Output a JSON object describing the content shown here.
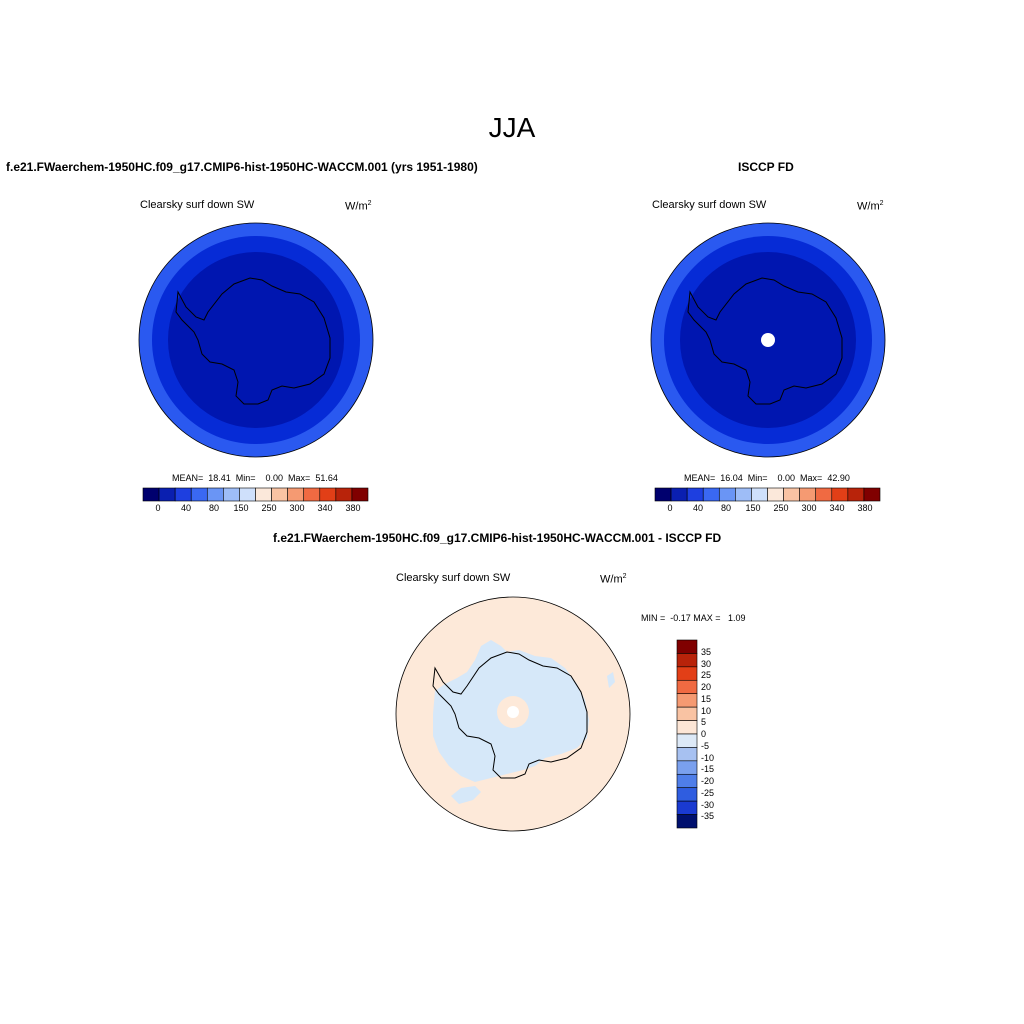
{
  "season": "JJA",
  "panel_left": {
    "title": "f.e21.FWaerchem-1950HC.f09_g17.CMIP6-hist-1950HC-WACCM.001 (yrs 1951-1980)",
    "variable": "Clearsky surf down SW",
    "units_base": "W/m",
    "units_exp": "2",
    "stats": "MEAN=  18.41  Min=    0.00  Max=  51.64",
    "colorbar_ticks": [
      "0",
      "40",
      "80",
      "150",
      "250",
      "300",
      "340",
      "380"
    ]
  },
  "panel_right": {
    "title": "ISCCP FD",
    "variable": "Clearsky surf down SW",
    "units_base": "W/m",
    "units_exp": "2",
    "stats": "MEAN=  16.04  Min=    0.00  Max=  42.90",
    "colorbar_ticks": [
      "0",
      "40",
      "80",
      "150",
      "250",
      "300",
      "340",
      "380"
    ]
  },
  "panel_diff": {
    "title": "f.e21.FWaerchem-1950HC.f09_g17.CMIP6-hist-1950HC-WACCM.001 - ISCCP FD",
    "variable": "Clearsky surf down SW",
    "units_base": "W/m",
    "units_exp": "2",
    "stats": "MIN =  -0.17 MAX =   1.09",
    "colorbar_ticks": [
      "35",
      "30",
      "25",
      "20",
      "15",
      "10",
      "5",
      "0",
      "-5",
      "-10",
      "-15",
      "-20",
      "-25",
      "-30",
      "-35"
    ]
  },
  "colors": {
    "abs_scale": [
      "#00006e",
      "#0a1fb0",
      "#1e3fe0",
      "#3a68f2",
      "#6a95f5",
      "#9ebdf7",
      "#cfe0fb",
      "#fbe8da",
      "#f9c3a3",
      "#f59a72",
      "#f06a42",
      "#e23f17",
      "#b8230a",
      "#800000"
    ],
    "diff_scale": [
      "#800000",
      "#b8230a",
      "#e23f17",
      "#f06a42",
      "#f59a72",
      "#f9c3a3",
      "#fde6d6",
      "#dde9f7",
      "#a7c1f1",
      "#7aa0ee",
      "#4f7ee9",
      "#2f5de0",
      "#1a3ad1",
      "#00106e"
    ],
    "outer_ring": "#2a59f0",
    "middle_ring": "#062bd6",
    "inner_disk": "#0016b0",
    "diff_bg": "#fde9d9",
    "diff_neg": "#d6e8f9",
    "coast": "#000000"
  }
}
